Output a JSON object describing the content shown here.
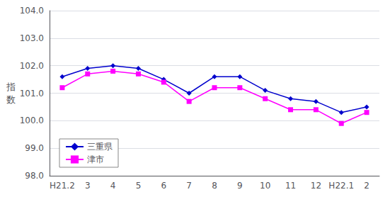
{
  "chart_data": {
    "type": "line",
    "ylabel": "指数",
    "categories": [
      "H21.2",
      "3",
      "4",
      "5",
      "6",
      "7",
      "8",
      "9",
      "10",
      "11",
      "12",
      "H22.1",
      "2"
    ],
    "series": [
      {
        "name": "三重県",
        "color": "#0000CD",
        "marker": "diamond",
        "values": [
          101.6,
          101.9,
          102.0,
          101.9,
          101.5,
          101.0,
          101.6,
          101.6,
          101.1,
          100.8,
          100.7,
          100.3,
          100.5
        ]
      },
      {
        "name": "津市",
        "color": "#FF00FF",
        "marker": "square",
        "values": [
          101.2,
          101.7,
          101.8,
          101.7,
          101.4,
          100.7,
          101.2,
          101.2,
          100.8,
          100.4,
          100.4,
          99.9,
          100.3
        ]
      }
    ],
    "ylim": [
      98.0,
      104.0
    ],
    "yticks": [
      {
        "value": 98.0,
        "label": "98.0"
      },
      {
        "value": 99.0,
        "label": "99.0"
      },
      {
        "value": 100.0,
        "label": "100.0"
      },
      {
        "value": 101.0,
        "label": "101.0"
      },
      {
        "value": 102.0,
        "label": "102.0"
      },
      {
        "value": 103.0,
        "label": "103.0"
      },
      {
        "value": 104.0,
        "label": "104.0"
      }
    ],
    "grid": true,
    "legend": "lower left"
  }
}
